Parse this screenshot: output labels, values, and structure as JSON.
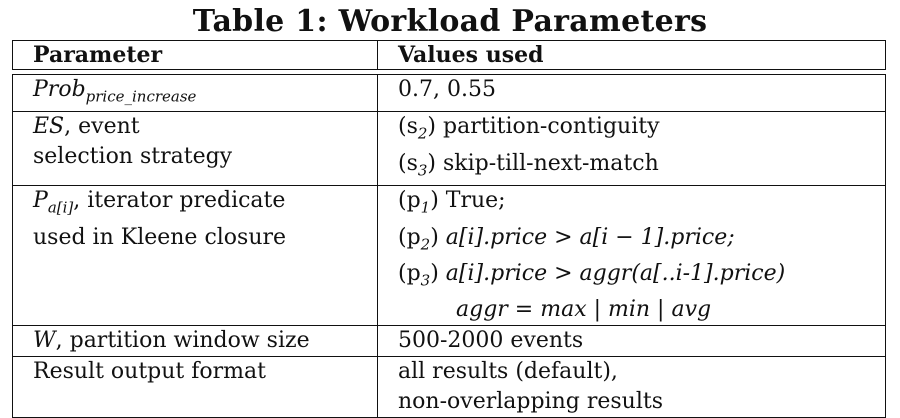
{
  "caption": "Table 1: Workload Parameters",
  "table": {
    "headers": [
      "Parameter",
      "Values used"
    ],
    "rows": [
      {
        "param": {
          "sym": "Prob",
          "sub": "price_increase"
        },
        "values": [
          "0.7, 0.55"
        ]
      },
      {
        "param": {
          "sym": "ES",
          "rest1": ", event",
          "rest2": "selection strategy"
        },
        "values": [
          "(s2) partition-contiguity",
          "(s3) skip-till-next-match"
        ],
        "value_parts": [
          {
            "id": "(s",
            "sub": "2",
            "close": ")",
            "text": " partition-contiguity"
          },
          {
            "id": "(s",
            "sub": "3",
            "close": ")",
            "text": " skip-till-next-match"
          }
        ]
      },
      {
        "param": {
          "sym": "P",
          "sub": "a[i]",
          "rest1": ", iterator predicate",
          "rest2": "used in Kleene closure"
        },
        "values": [
          "(p1) True;",
          "(p2) a[i].price > a[i − 1].price;",
          "(p3) a[i].price > aggr(a[..i-1].price)",
          "aggr = max | min | avg"
        ],
        "value_parts": [
          {
            "id": "(p",
            "sub": "1",
            "close": ")",
            "text": " True;"
          },
          {
            "id": "(p",
            "sub": "2",
            "close": ")",
            "text": " a[i].price > a[i − 1].price;"
          },
          {
            "id": "(p",
            "sub": "3",
            "close": ")",
            "text": " a[i].price > aggr(a[..i-1].price)"
          },
          {
            "text": "aggr = max | min | avg"
          }
        ]
      },
      {
        "param": {
          "sym": "W",
          "rest1": ", partition window size"
        },
        "values": [
          "500-2000 events"
        ]
      },
      {
        "param": {
          "rest1": "Result output format"
        },
        "values": [
          "all results (default),",
          "non-overlapping results"
        ]
      }
    ]
  }
}
